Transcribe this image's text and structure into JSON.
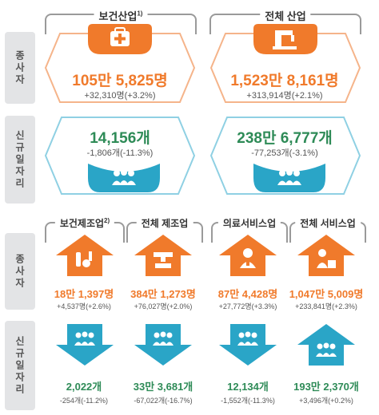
{
  "top": {
    "header_left": "보건산업",
    "header_left_sup": "1)",
    "header_right": "전체 산업",
    "label_employees": "종사자",
    "label_new_jobs": "신규일자리",
    "employees_left": "105만 5,825명",
    "employees_left_change": "+32,310명(+3.2%)",
    "employees_right": "1,523만 8,161명",
    "employees_right_change": "+313,914명(+2.1%)",
    "jobs_left": "14,156개",
    "jobs_left_change": "-1,806개(-11.3%)",
    "jobs_right": "238만 6,777개",
    "jobs_right_change": "-77,253개(-3.1%)"
  },
  "bottom": {
    "label_employees": "종사자",
    "label_new_jobs": "신규일자리",
    "headers": [
      {
        "label": "보건제조업",
        "sup": "2)"
      },
      {
        "label": "전체 제조업",
        "sup": ""
      },
      {
        "label": "의료서비스업",
        "sup": ""
      },
      {
        "label": "전체 서비스업",
        "sup": ""
      }
    ],
    "employees": [
      {
        "value": "18만 1,397명",
        "change": "+4,537명(+2.6%)"
      },
      {
        "value": "384만 1,273명",
        "change": "+76,027명(+2.0%)"
      },
      {
        "value": "87만 4,428명",
        "change": "+27,772명(+3.3%)"
      },
      {
        "value": "1,047만 5,009명",
        "change": "+233,841명(+2.3%)"
      }
    ],
    "jobs": [
      {
        "value": "2,022개",
        "change": "-254개(-11.2%)"
      },
      {
        "value": "33만 3,681개",
        "change": "-67,022개(-16.7%)"
      },
      {
        "value": "12,134개",
        "change": "-1,552개(-11.3%)"
      },
      {
        "value": "193만 2,370개",
        "change": "+3,496개(+0.2%)"
      }
    ]
  },
  "colors": {
    "orange": "#f07a2b",
    "teal": "#2aa5c7",
    "green": "#2e8b57",
    "gray": "#9a9a9a"
  },
  "icons": [
    "medical-kit-icon",
    "factory-icon",
    "people-icon",
    "pharma-tools-icon",
    "machine-worker-icon",
    "doctor-icon",
    "service-worker-icon"
  ]
}
